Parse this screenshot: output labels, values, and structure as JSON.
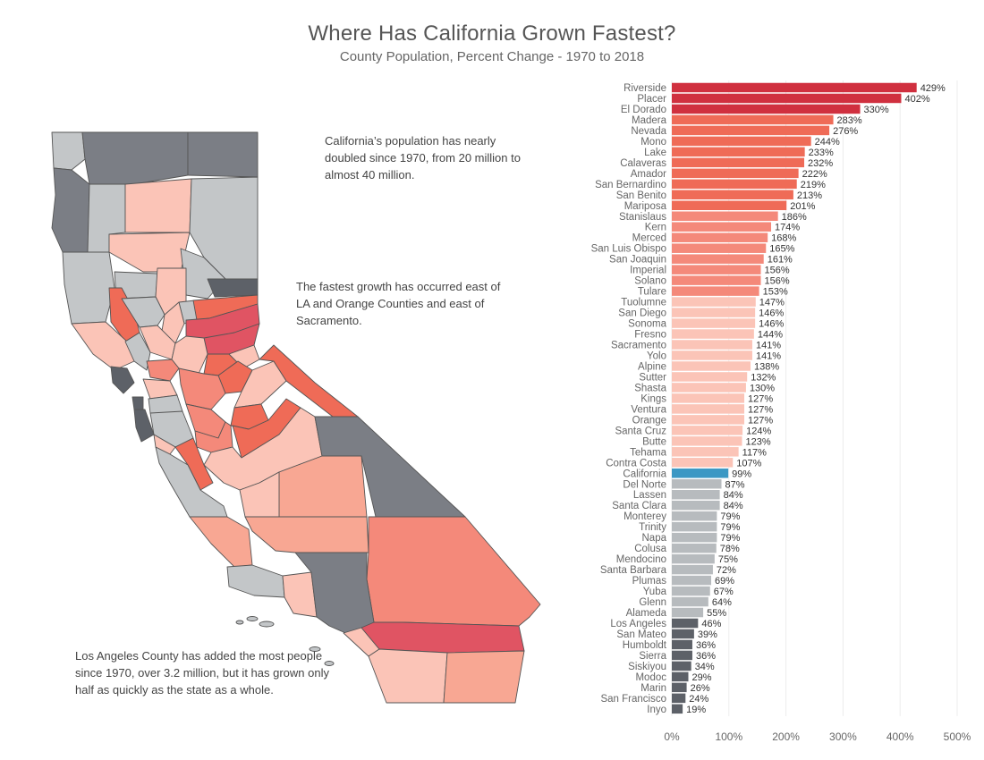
{
  "title": "Where Has California Grown Fastest?",
  "subtitle": "County Population, Percent Change - 1970 to 2018",
  "notes": {
    "note1": "California’s population has nearly doubled since 1970, from 20 million to almost 40 million.",
    "note2": "The fastest growth has occurred east of LA and Orange Counties and east of Sacramento.",
    "note3": "Los Angeles County has added the most people since 1970, over 3.2 million, but it has grown only half as quickly as the state as a whole."
  },
  "colors": {
    "darkRed": "#d0303f",
    "red": "#e05463",
    "orangeRed": "#ef6b57",
    "salmon": "#f4897a",
    "peach": "#f8a793",
    "pink": "#fbc4b7",
    "california": "#3b98c4",
    "lightGray": "#b7bbbe",
    "darkGray": "#5d6168",
    "mapDarkGray": "#7b7e85",
    "mapLightGray": "#c3c6c8",
    "mapStroke": "#555555"
  },
  "chart_data": {
    "type": "bar",
    "orientation": "horizontal",
    "title": "County Population, Percent Change - 1970 to 2018",
    "xlim": [
      0,
      500
    ],
    "xticks": [
      0,
      100,
      200,
      300,
      400,
      500
    ],
    "xtick_labels": [
      "0%",
      "100%",
      "200%",
      "300%",
      "400%",
      "500%"
    ],
    "categories": [
      "Riverside",
      "Placer",
      "El Dorado",
      "Madera",
      "Nevada",
      "Mono",
      "Lake",
      "Calaveras",
      "Amador",
      "San Bernardino",
      "San Benito",
      "Mariposa",
      "Stanislaus",
      "Kern",
      "Merced",
      "San Luis Obispo",
      "San Joaquin",
      "Imperial",
      "Solano",
      "Tulare",
      "Tuolumne",
      "San Diego",
      "Sonoma",
      "Fresno",
      "Sacramento",
      "Yolo",
      "Alpine",
      "Sutter",
      "Shasta",
      "Kings",
      "Ventura",
      "Orange",
      "Santa Cruz",
      "Butte",
      "Tehama",
      "Contra Costa",
      "California",
      "Del Norte",
      "Lassen",
      "Santa Clara",
      "Monterey",
      "Trinity",
      "Napa",
      "Colusa",
      "Mendocino",
      "Santa Barbara",
      "Plumas",
      "Yuba",
      "Glenn",
      "Alameda",
      "Los Angeles",
      "San Mateo",
      "Humboldt",
      "Sierra",
      "Siskiyou",
      "Modoc",
      "Marin",
      "San Francisco",
      "Inyo"
    ],
    "values": [
      429,
      402,
      330,
      283,
      276,
      244,
      233,
      232,
      222,
      219,
      213,
      201,
      186,
      174,
      168,
      165,
      161,
      156,
      156,
      153,
      147,
      146,
      146,
      144,
      141,
      141,
      138,
      132,
      130,
      127,
      127,
      127,
      124,
      123,
      117,
      107,
      99,
      87,
      84,
      84,
      79,
      79,
      79,
      78,
      75,
      72,
      69,
      67,
      64,
      55,
      46,
      39,
      36,
      36,
      34,
      29,
      26,
      24,
      19
    ],
    "value_labels": [
      "429%",
      "402%",
      "330%",
      "283%",
      "276%",
      "244%",
      "233%",
      "232%",
      "222%",
      "219%",
      "213%",
      "201%",
      "186%",
      "174%",
      "168%",
      "165%",
      "161%",
      "156%",
      "156%",
      "153%",
      "147%",
      "146%",
      "146%",
      "144%",
      "141%",
      "141%",
      "138%",
      "132%",
      "130%",
      "127%",
      "127%",
      "127%",
      "124%",
      "123%",
      "117%",
      "107%",
      "99%",
      "87%",
      "84%",
      "84%",
      "79%",
      "79%",
      "79%",
      "78%",
      "75%",
      "72%",
      "69%",
      "67%",
      "64%",
      "55%",
      "46%",
      "39%",
      "36%",
      "36%",
      "34%",
      "29%",
      "26%",
      "24%",
      "19%"
    ],
    "color_keys": [
      "darkRed",
      "darkRed",
      "darkRed",
      "orangeRed",
      "orangeRed",
      "orangeRed",
      "orangeRed",
      "orangeRed",
      "orangeRed",
      "orangeRed",
      "orangeRed",
      "orangeRed",
      "salmon",
      "salmon",
      "salmon",
      "salmon",
      "salmon",
      "salmon",
      "salmon",
      "salmon",
      "pink",
      "pink",
      "pink",
      "pink",
      "pink",
      "pink",
      "pink",
      "pink",
      "pink",
      "pink",
      "pink",
      "pink",
      "pink",
      "pink",
      "pink",
      "pink",
      "california",
      "lightGray",
      "lightGray",
      "lightGray",
      "lightGray",
      "lightGray",
      "lightGray",
      "lightGray",
      "lightGray",
      "lightGray",
      "lightGray",
      "lightGray",
      "lightGray",
      "lightGray",
      "darkGray",
      "darkGray",
      "darkGray",
      "darkGray",
      "darkGray",
      "darkGray",
      "darkGray",
      "darkGray",
      "darkGray"
    ]
  }
}
